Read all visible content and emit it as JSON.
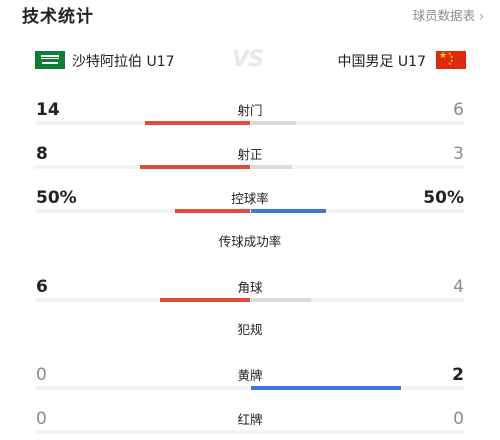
{
  "header": {
    "title": "技术统计",
    "roster_link": "球员数据表",
    "roster_chevron": "›"
  },
  "teams": {
    "home": {
      "name": "沙特阿拉伯 U17",
      "flag_icon": "saudi-arabia-flag-icon"
    },
    "vs": "VS",
    "away": {
      "name": "中国男足 U17",
      "flag_icon": "china-flag-icon"
    }
  },
  "colors": {
    "home_bar": "#e24a3b",
    "away_bar": "#3c78d8",
    "neutral_bar": "#d9d9e0",
    "track": "#f3f3f5"
  },
  "stats": [
    {
      "name": "射门",
      "home": "14",
      "away": "6",
      "home_share": 0.7,
      "away_share": 0.3,
      "leader": "home",
      "bar": true
    },
    {
      "name": "射正",
      "home": "8",
      "away": "3",
      "home_share": 0.73,
      "away_share": 0.27,
      "leader": "home",
      "bar": true
    },
    {
      "name": "控球率",
      "home": "50%",
      "away": "50%",
      "home_share": 0.5,
      "away_share": 0.5,
      "leader": "both",
      "bar": true
    },
    {
      "name": "传球成功率",
      "home": "",
      "away": "",
      "home_share": 0,
      "away_share": 0,
      "leader": "none",
      "bar": false
    },
    {
      "name": "角球",
      "home": "6",
      "away": "4",
      "home_share": 0.6,
      "away_share": 0.4,
      "leader": "home",
      "bar": true
    },
    {
      "name": "犯规",
      "home": "",
      "away": "",
      "home_share": 0,
      "away_share": 0,
      "leader": "none",
      "bar": false
    },
    {
      "name": "黄牌",
      "home": "0",
      "away": "2",
      "home_share": 0,
      "away_share": 1.0,
      "leader": "away",
      "bar": true
    },
    {
      "name": "红牌",
      "home": "0",
      "away": "0",
      "home_share": 0,
      "away_share": 0,
      "leader": "none",
      "bar": true
    }
  ]
}
